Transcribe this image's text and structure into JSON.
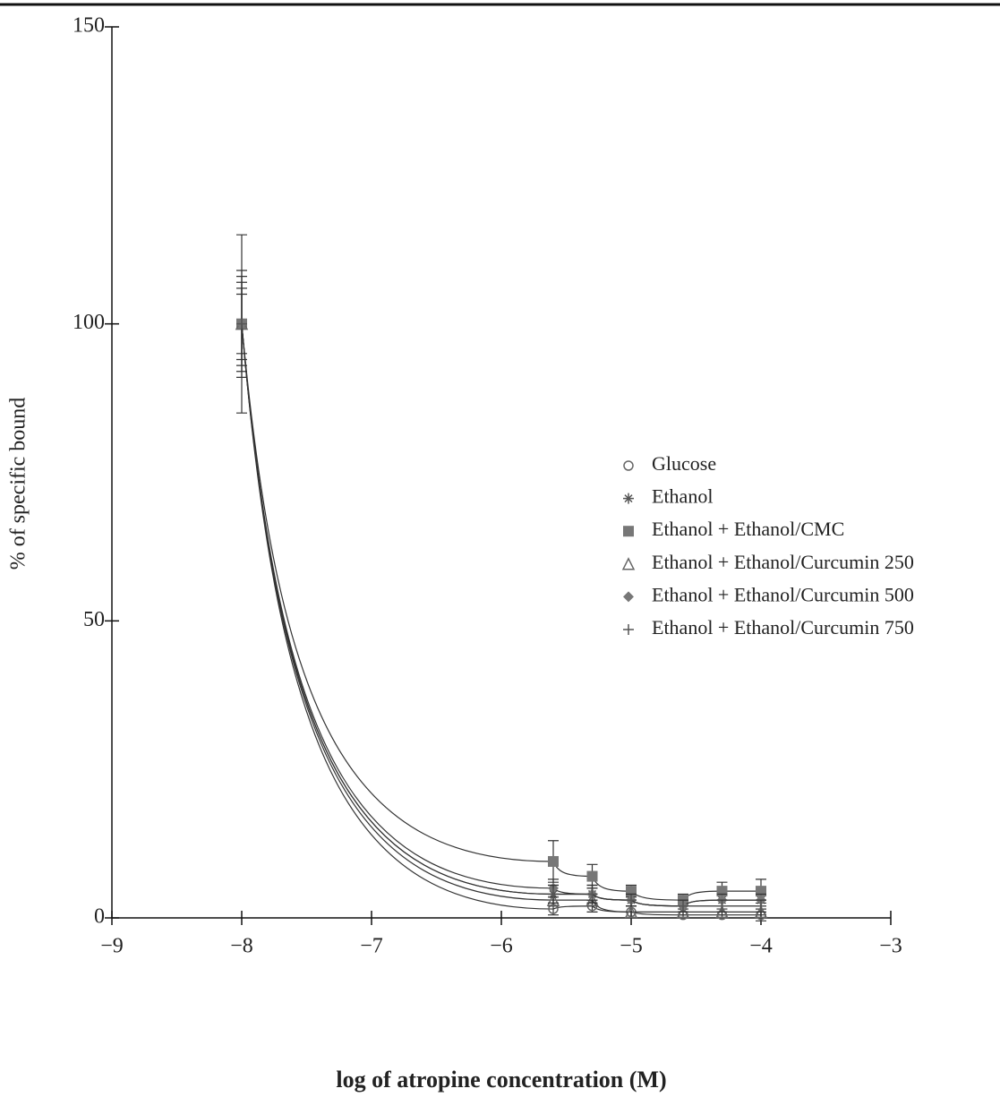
{
  "chart_data": {
    "type": "scatter",
    "xlabel": "log of atropine concentration (M)",
    "ylabel": "% of specific bound",
    "x": [
      -8,
      -5.6,
      -5.3,
      -5,
      -4.6,
      -4.3,
      -4
    ],
    "xlim": [
      -9,
      -3
    ],
    "xticks": [
      {
        "value": -9,
        "label": "−9"
      },
      {
        "value": -8,
        "label": "−8"
      },
      {
        "value": -7,
        "label": "−7"
      },
      {
        "value": -6,
        "label": "−6"
      },
      {
        "value": -5,
        "label": "−5"
      },
      {
        "value": -4,
        "label": "−4"
      },
      {
        "value": -3,
        "label": "−3"
      }
    ],
    "ylim": [
      0,
      150
    ],
    "yticks": [
      0,
      50,
      100,
      150
    ],
    "series": [
      {
        "name": "Glucose",
        "marker": "circle",
        "color": "#666666",
        "values": [
          100,
          1.5,
          2,
          1,
          0.5,
          0.5,
          0.5
        ],
        "errors": [
          8,
          1,
          1,
          1,
          0.5,
          0.5,
          1
        ]
      },
      {
        "name": "Ethanol",
        "marker": "asterisk",
        "color": "#555555",
        "values": [
          100,
          4,
          4,
          3,
          2,
          3,
          3
        ],
        "errors": [
          6,
          1.5,
          1.5,
          1,
          1,
          1,
          1
        ]
      },
      {
        "name": "Ethanol + Ethanol/CMC",
        "marker": "square",
        "color": "#777777",
        "values": [
          100,
          9.5,
          7,
          4.5,
          3,
          4.5,
          4.5
        ],
        "errors": [
          15,
          3.5,
          2,
          1,
          1,
          1.5,
          2
        ]
      },
      {
        "name": "Ethanol + Ethanol/Curcumin 250",
        "marker": "triangle",
        "color": "#666666",
        "values": [
          100,
          3,
          3,
          1,
          1,
          1,
          1
        ],
        "errors": [
          9,
          1,
          1,
          1,
          0.5,
          0.5,
          0.5
        ]
      },
      {
        "name": "Ethanol + Ethanol/Curcumin 500",
        "marker": "diamond",
        "color": "#777777",
        "values": [
          100,
          5,
          4,
          3,
          2,
          3,
          3
        ],
        "errors": [
          7,
          1.5,
          1.5,
          1,
          1,
          1,
          1
        ]
      },
      {
        "name": "Ethanol + Ethanol/Curcumin 750",
        "marker": "plus",
        "color": "#555555",
        "values": [
          100,
          4,
          4,
          3,
          2,
          2,
          2
        ],
        "errors": [
          5,
          1.5,
          1,
          1,
          1,
          1,
          1
        ]
      }
    ]
  }
}
